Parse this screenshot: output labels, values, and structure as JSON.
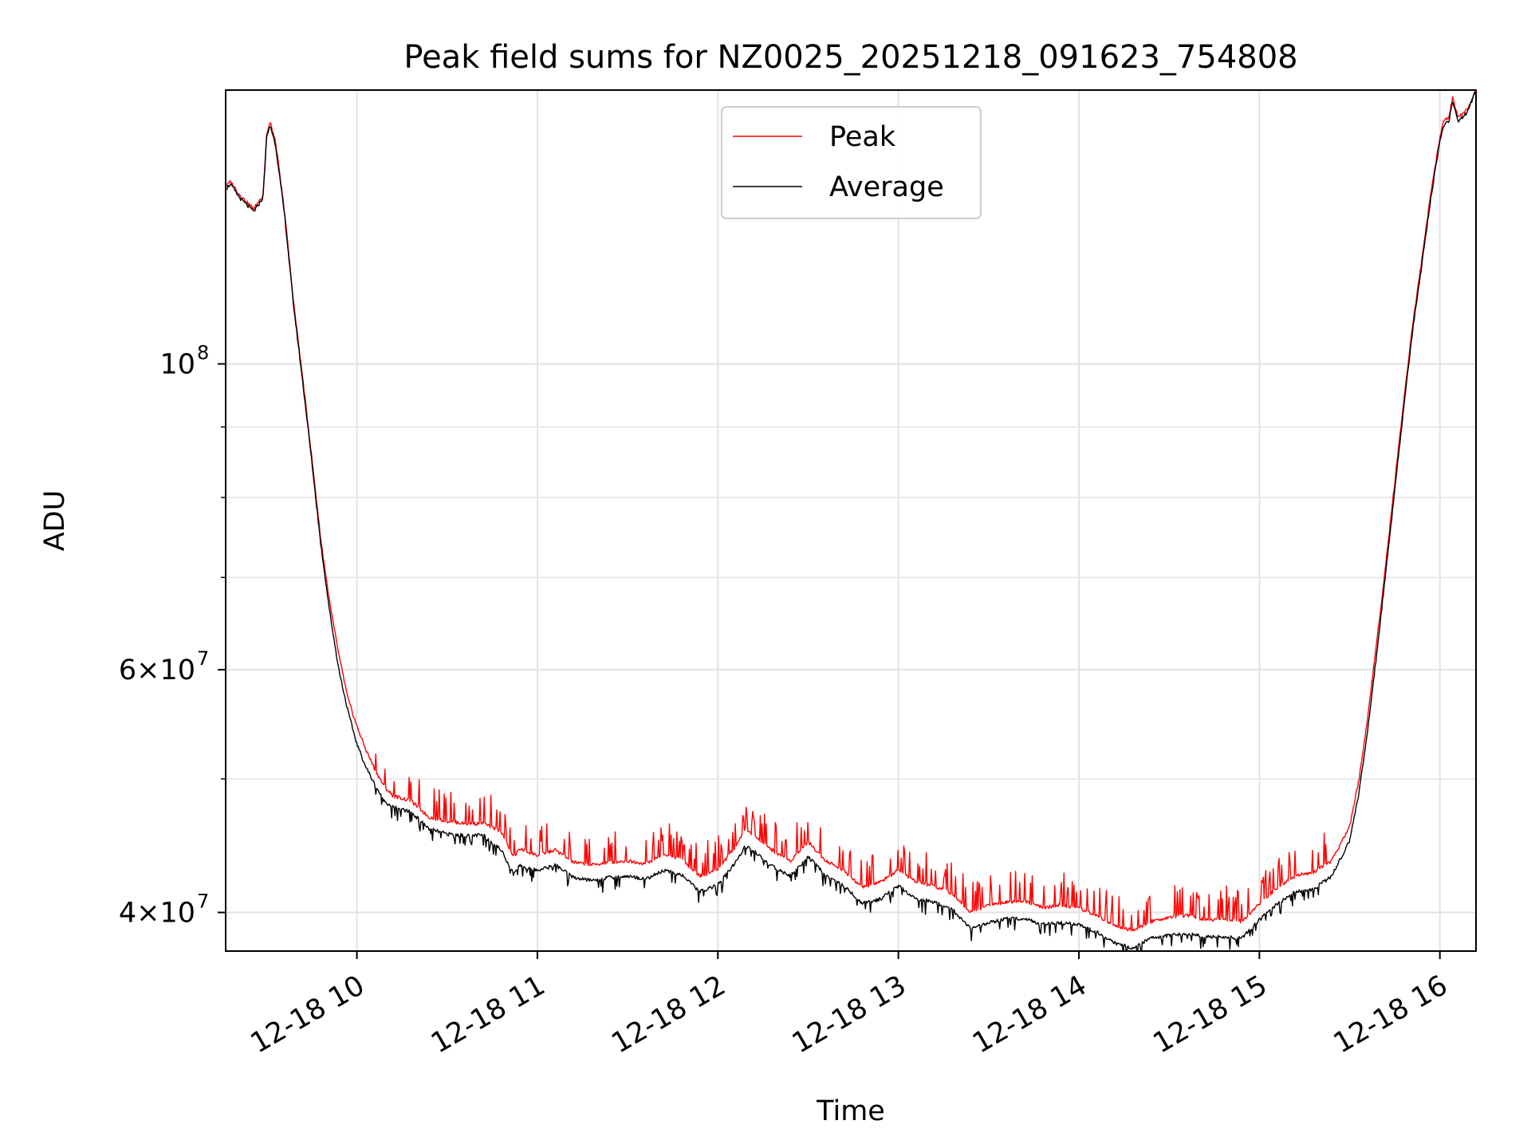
{
  "chart_data": {
    "type": "line",
    "title": "Peak field sums for NZ0025_20251218_091623_754808",
    "xlabel": "Time",
    "ylabel": "ADU",
    "yscale": "log",
    "xlim_hours": [
      9.273,
      16.2
    ],
    "ylim": [
      37500000,
      158000000
    ],
    "grid": true,
    "legend_position": "upper center",
    "x_ticks": [
      {
        "value": 10,
        "label": "12-18 10"
      },
      {
        "value": 11,
        "label": "12-18 11"
      },
      {
        "value": 12,
        "label": "12-18 12"
      },
      {
        "value": 13,
        "label": "12-18 13"
      },
      {
        "value": 14,
        "label": "12-18 14"
      },
      {
        "value": 15,
        "label": "12-18 15"
      },
      {
        "value": 16,
        "label": "12-18 16"
      }
    ],
    "y_ticks_major": [
      {
        "value": 40000000,
        "base": "4×10",
        "exp": "7"
      },
      {
        "value": 60000000,
        "base": "6×10",
        "exp": "7"
      },
      {
        "value": 100000000,
        "base": "10",
        "exp": "8"
      }
    ],
    "y_ticks_minor": [
      50000000,
      70000000,
      80000000,
      90000000
    ],
    "series": [
      {
        "name": "Average",
        "color": "#000000",
        "x": [
          9.273,
          9.3,
          9.35,
          9.4,
          9.43,
          9.48,
          9.5,
          9.52,
          9.55,
          9.6,
          9.65,
          9.7,
          9.75,
          9.8,
          9.85,
          9.9,
          9.95,
          10.0,
          10.05,
          10.1,
          10.15,
          10.2,
          10.3,
          10.4,
          10.5,
          10.6,
          10.7,
          10.8,
          10.87,
          10.9,
          11.0,
          11.1,
          11.2,
          11.3,
          11.4,
          11.5,
          11.6,
          11.7,
          11.8,
          11.9,
          12.0,
          12.1,
          12.15,
          12.2,
          12.3,
          12.4,
          12.5,
          12.6,
          12.7,
          12.8,
          12.9,
          13.0,
          13.1,
          13.2,
          13.3,
          13.4,
          13.5,
          13.6,
          13.7,
          13.8,
          13.9,
          14.0,
          14.1,
          14.2,
          14.3,
          14.4,
          14.5,
          14.6,
          14.7,
          14.8,
          14.9,
          15.0,
          15.1,
          15.2,
          15.3,
          15.4,
          15.5,
          15.55,
          15.6,
          15.65,
          15.7,
          15.75,
          15.8,
          15.85,
          15.9,
          15.95,
          16.0,
          16.02,
          16.05,
          16.07,
          16.1,
          16.15,
          16.2
        ],
        "values": [
          134000000,
          135000000,
          132000000,
          130000000,
          129000000,
          132000000,
          146000000,
          149000000,
          144000000,
          128000000,
          110000000,
          97000000,
          85000000,
          74000000,
          66000000,
          60000000,
          56000000,
          53000000,
          51000000,
          49500000,
          48200000,
          47700000,
          47300000,
          46000000,
          45600000,
          45500000,
          45500000,
          44400000,
          42600000,
          43300000,
          42900000,
          43300000,
          42400000,
          42200000,
          42400000,
          42500000,
          42300000,
          42900000,
          42600000,
          41400000,
          41900000,
          43500000,
          44700000,
          44300000,
          43200000,
          42500000,
          43900000,
          42500000,
          41800000,
          40600000,
          40900000,
          41800000,
          40900000,
          40700000,
          40200000,
          38900000,
          39300000,
          39600000,
          39600000,
          39200000,
          39300000,
          39200000,
          38700000,
          38000000,
          37700000,
          38300000,
          38500000,
          38600000,
          38400000,
          38400000,
          38300000,
          39500000,
          40600000,
          41400000,
          41600000,
          42500000,
          45100000,
          48700000,
          54200000,
          61600000,
          70600000,
          81000000,
          93000000,
          106000000,
          118000000,
          132000000,
          145000000,
          149000000,
          150000000,
          155000000,
          150000000,
          152000000,
          158000000
        ]
      },
      {
        "name": "Peak",
        "color": "#ff0000",
        "x": [
          9.273,
          9.3,
          9.35,
          9.4,
          9.43,
          9.48,
          9.5,
          9.52,
          9.55,
          9.6,
          9.65,
          9.7,
          9.75,
          9.8,
          9.85,
          9.9,
          9.95,
          10.0,
          10.05,
          10.1,
          10.15,
          10.2,
          10.3,
          10.4,
          10.5,
          10.6,
          10.7,
          10.8,
          10.87,
          10.9,
          11.0,
          11.1,
          11.2,
          11.3,
          11.4,
          11.5,
          11.6,
          11.7,
          11.8,
          11.9,
          12.0,
          12.1,
          12.15,
          12.2,
          12.3,
          12.4,
          12.5,
          12.6,
          12.7,
          12.8,
          12.9,
          13.0,
          13.1,
          13.2,
          13.3,
          13.4,
          13.5,
          13.6,
          13.7,
          13.8,
          13.9,
          14.0,
          14.1,
          14.2,
          14.3,
          14.4,
          14.5,
          14.6,
          14.7,
          14.8,
          14.9,
          15.0,
          15.1,
          15.2,
          15.3,
          15.4,
          15.5,
          15.55,
          15.6,
          15.65,
          15.7,
          15.75,
          15.8,
          15.85,
          15.9,
          15.95,
          16.0,
          16.02,
          16.05,
          16.07,
          16.1,
          16.15,
          16.2
        ],
        "values": [
          134500000,
          135600000,
          132700000,
          130600000,
          129600000,
          132600000,
          146800000,
          149700000,
          144700000,
          128700000,
          110600000,
          97600000,
          85600000,
          74600000,
          67000000,
          61500000,
          57200000,
          54600000,
          52500000,
          50800000,
          49400000,
          48600000,
          48200000,
          46900000,
          46600000,
          46400000,
          46400000,
          45800000,
          43800000,
          44500000,
          44000000,
          44400000,
          43500000,
          43300000,
          43500000,
          43600000,
          43400000,
          44100000,
          43700000,
          42500000,
          43000000,
          44700000,
          46000000,
          45500000,
          44400000,
          43600000,
          45000000,
          43600000,
          42900000,
          41700000,
          42100000,
          42900000,
          42100000,
          41800000,
          41300000,
          40000000,
          40500000,
          40700000,
          40800000,
          40300000,
          40500000,
          40300000,
          39800000,
          39100000,
          38800000,
          39400000,
          39700000,
          39800000,
          39500000,
          39600000,
          39400000,
          40600000,
          41700000,
          42500000,
          42800000,
          43600000,
          46200000,
          49800000,
          55400000,
          62800000,
          71600000,
          82000000,
          94000000,
          107000000,
          119000000,
          133000000,
          146000000,
          150000000,
          151000000,
          156000000,
          151000000,
          153000000,
          158000000
        ]
      }
    ]
  }
}
